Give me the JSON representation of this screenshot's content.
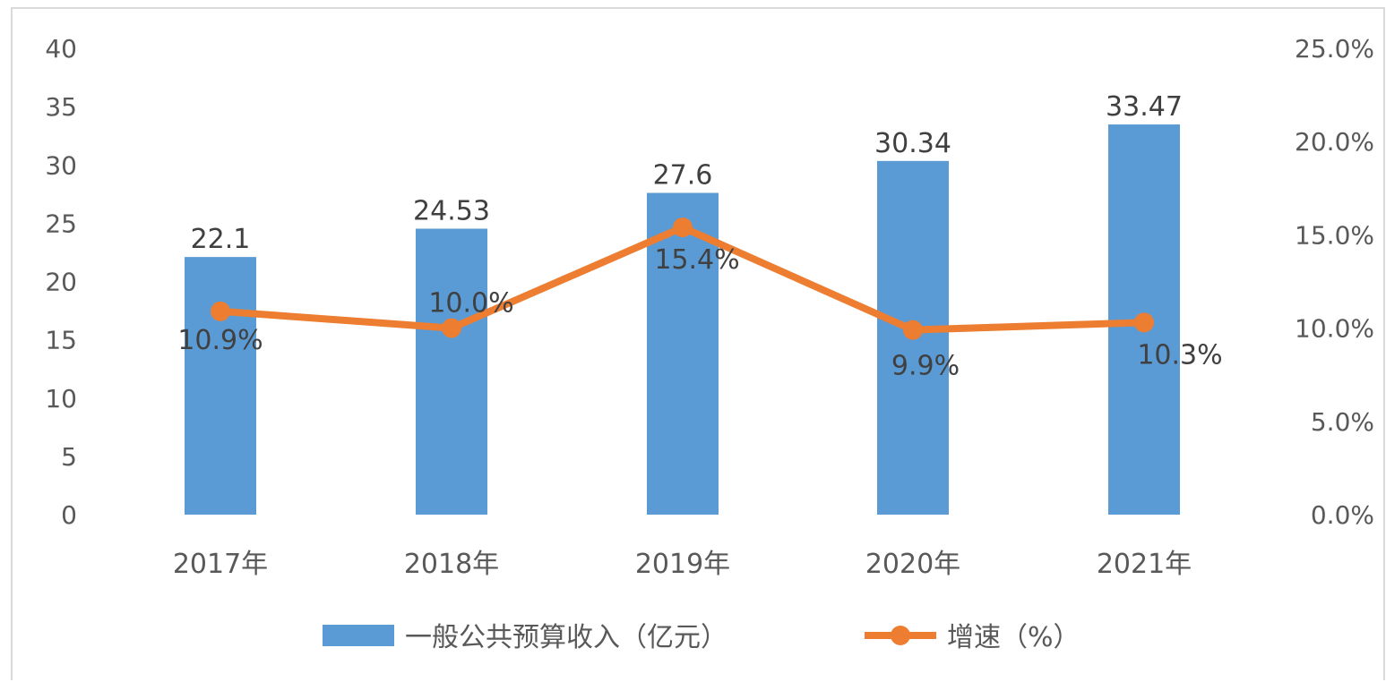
{
  "chart_data": {
    "type": "bar",
    "categories": [
      "2017年",
      "2018年",
      "2019年",
      "2020年",
      "2021年"
    ],
    "series": [
      {
        "name": "一般公共预算收入（亿元）",
        "type": "bar",
        "axis": "left",
        "color": "#5b9bd5",
        "values": [
          22.1,
          24.53,
          27.6,
          30.34,
          33.47
        ],
        "labels": [
          "22.1",
          "24.53",
          "27.6",
          "30.34",
          "33.47"
        ]
      },
      {
        "name": "增速（%）",
        "type": "line",
        "axis": "right",
        "color": "#ed7d31",
        "values": [
          10.9,
          10.0,
          15.4,
          9.9,
          10.3
        ],
        "labels": [
          "10.9%",
          "10.0%",
          "15.4%",
          "9.9%",
          "10.3%"
        ]
      }
    ],
    "y_left": {
      "ylim": [
        0,
        40
      ],
      "ticks": [
        "0",
        "5",
        "10",
        "15",
        "20",
        "25",
        "30",
        "35",
        "40"
      ]
    },
    "y_right": {
      "ylim": [
        0,
        25
      ],
      "ticks": [
        "0.0%",
        "5.0%",
        "10.0%",
        "15.0%",
        "20.0%",
        "25.0%"
      ]
    },
    "grid": false,
    "legend_position": "bottom"
  }
}
